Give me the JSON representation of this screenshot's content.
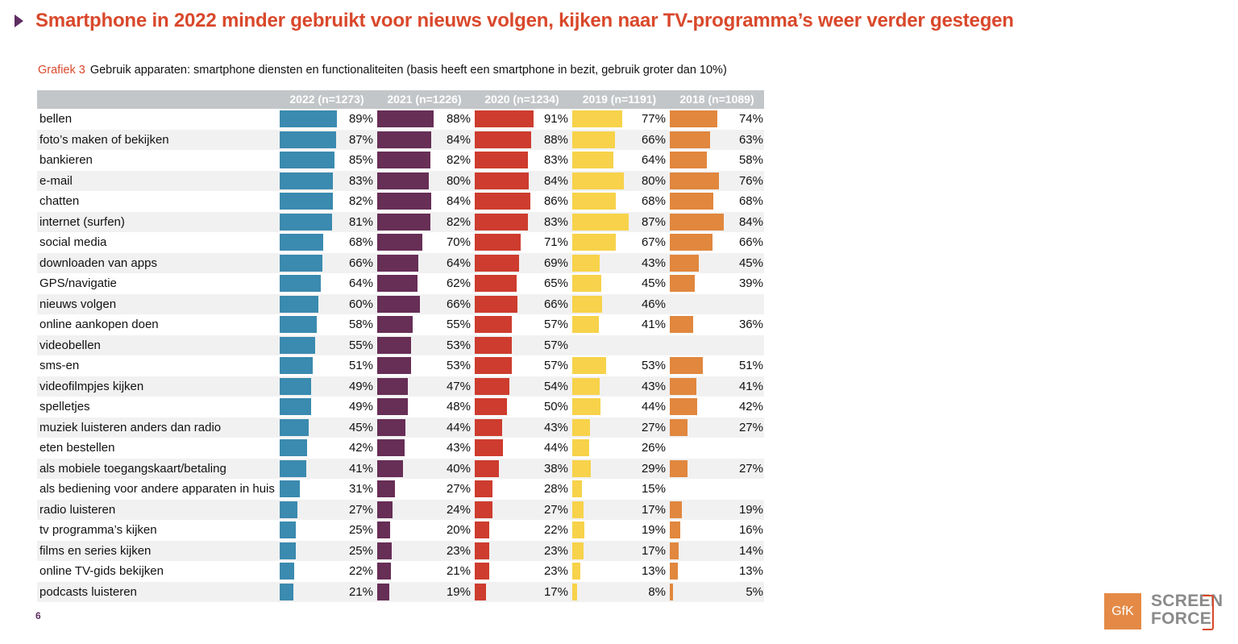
{
  "header": {
    "title": "Smartphone in 2022 minder gebruikt voor nieuws volgen, kijken naar TV-programma’s weer verder gestegen",
    "grafiek_label": "Grafiek 3",
    "subtitle": "Gebruik apparaten: smartphone diensten en functionaliteiten (basis heeft een smartphone in bezit, gebruik groter dan 10%)"
  },
  "footer": {
    "page_number": "6",
    "logo_gfk": "GfK",
    "logo_screenforce_line1": "SCREEN",
    "logo_screenforce_line2": "FORCE"
  },
  "chart_data": {
    "type": "bar",
    "orientation": "horizontal",
    "title": "Gebruik apparaten: smartphone diensten en functionaliteiten",
    "xlabel": "",
    "ylabel": "",
    "xlim": [
      0,
      100
    ],
    "unit": "%",
    "categories": [
      "bellen",
      "foto’s maken of bekijken",
      "bankieren",
      "e-mail",
      "chatten",
      "internet (surfen)",
      "social media",
      "downloaden van apps",
      "GPS/navigatie",
      "nieuws volgen",
      "online aankopen doen",
      "videobellen",
      "sms-en",
      "videofilmpjes kijken",
      "spelletjes",
      "muziek luisteren anders dan radio",
      "eten bestellen",
      "als mobiele toegangskaart/betaling",
      "als bediening voor andere apparaten in huis",
      "radio luisteren",
      "tv programma’s kijken",
      "films en series kijken",
      "online TV-gids bekijken",
      "podcasts luisteren"
    ],
    "series": [
      {
        "name": "2022 (n=1273)",
        "color": "#3b8aaf",
        "values": [
          89,
          87,
          85,
          83,
          82,
          81,
          68,
          66,
          64,
          60,
          58,
          55,
          51,
          49,
          49,
          45,
          42,
          41,
          31,
          27,
          25,
          25,
          22,
          21
        ]
      },
      {
        "name": "2021 (n=1226)",
        "color": "#672e56",
        "values": [
          88,
          84,
          82,
          80,
          84,
          82,
          70,
          64,
          62,
          66,
          55,
          53,
          53,
          47,
          48,
          44,
          43,
          40,
          27,
          24,
          20,
          23,
          21,
          19
        ]
      },
      {
        "name": "2020 (n=1234)",
        "color": "#cd3c2e",
        "values": [
          91,
          88,
          83,
          84,
          86,
          83,
          71,
          69,
          65,
          66,
          57,
          57,
          57,
          54,
          50,
          43,
          44,
          38,
          28,
          27,
          22,
          23,
          23,
          17
        ]
      },
      {
        "name": "2019 (n=1191)",
        "color": "#f7d24a",
        "values": [
          77,
          66,
          64,
          80,
          68,
          87,
          67,
          43,
          45,
          46,
          41,
          null,
          53,
          43,
          44,
          27,
          26,
          29,
          15,
          17,
          19,
          17,
          13,
          8
        ]
      },
      {
        "name": "2018 (n=1089)",
        "color": "#e1873e",
        "values": [
          74,
          63,
          58,
          76,
          68,
          84,
          66,
          45,
          39,
          null,
          36,
          null,
          51,
          41,
          42,
          27,
          null,
          27,
          null,
          19,
          16,
          14,
          13,
          5
        ]
      }
    ],
    "grid": false,
    "legend": "column-headers"
  }
}
